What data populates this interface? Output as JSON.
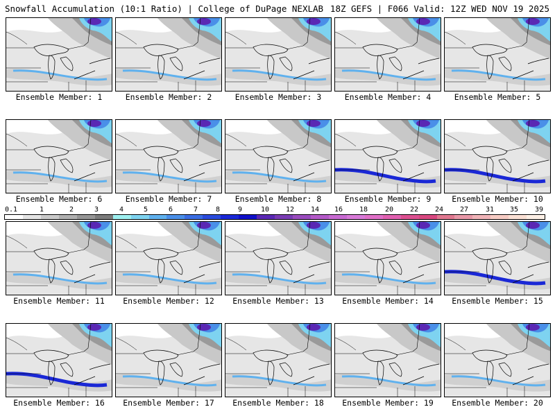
{
  "header": {
    "left_title": "Snowfall Accumulation (10:1 Ratio) | College of DuPage NEXLAB",
    "right_title": "18Z GEFS | F066 Valid: 12Z WED NOV 19 2025"
  },
  "legend": {
    "tick_labels": [
      "0.1",
      "1",
      "2",
      "3",
      "4",
      "5",
      "6",
      "7",
      "8",
      "9",
      "10",
      "12",
      "14",
      "16",
      "18",
      "20",
      "22",
      "24",
      "27",
      "31",
      "35",
      "39"
    ],
    "colors": [
      "#ffffff",
      "#e4e4e4",
      "#cacaca",
      "#b0b0b0",
      "#969696",
      "#7c7c7c",
      "#9ef0f0",
      "#7ed3f0",
      "#5fb1ee",
      "#4a8fe8",
      "#3a6de2",
      "#2a4bdc",
      "#1a28d6",
      "#1010c8",
      "#5a28b4",
      "#7a3cb4",
      "#9a4cbe",
      "#b45ac8",
      "#c86ad2",
      "#d87ad8",
      "#e070c8",
      "#e060b0",
      "#dc5090",
      "#d84880",
      "#e07890",
      "#e898a8",
      "#f0b4b8",
      "#f6ccc4",
      "#fae0d4",
      "#fdf0e6"
    ]
  },
  "panels": [
    {
      "label": "Ensemble Member: 1"
    },
    {
      "label": "Ensemble Member: 2"
    },
    {
      "label": "Ensemble Member: 3"
    },
    {
      "label": "Ensemble Member: 4"
    },
    {
      "label": "Ensemble Member: 5"
    },
    {
      "label": "Ensemble Member: 6"
    },
    {
      "label": "Ensemble Member: 7"
    },
    {
      "label": "Ensemble Member: 8"
    },
    {
      "label": "Ensemble Member: 9"
    },
    {
      "label": "Ensemble Member: 10"
    },
    {
      "label": "Ensemble Member: 11"
    },
    {
      "label": "Ensemble Member: 12"
    },
    {
      "label": "Ensemble Member: 13"
    },
    {
      "label": "Ensemble Member: 14"
    },
    {
      "label": "Ensemble Member: 15"
    },
    {
      "label": "Ensemble Member: 16"
    },
    {
      "label": "Ensemble Member: 17"
    },
    {
      "label": "Ensemble Member: 18"
    },
    {
      "label": "Ensemble Member: 19"
    },
    {
      "label": "Ensemble Member: 20"
    }
  ]
}
